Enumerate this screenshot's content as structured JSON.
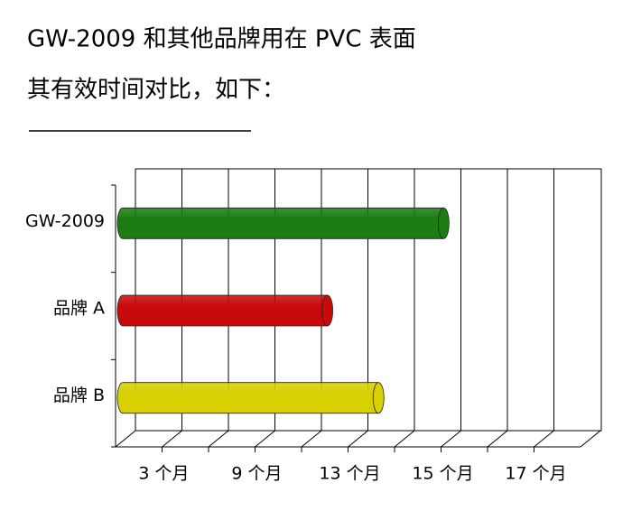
{
  "chart_data": {
    "type": "bar3d",
    "title": "GW-2009 和其他品牌用在 PVC 表面",
    "subtitle": "其有效时间对比，如下：",
    "categories": [
      "GW-2009",
      "品牌 A",
      "品牌 B"
    ],
    "values": [
      6.9,
      4.4,
      5.5
    ],
    "colors": [
      "#1b7d12",
      "#c80a0a",
      "#d8d000"
    ],
    "xlim": [
      0,
      10
    ],
    "xticks": [
      {
        "value": 1,
        "label": "3 个月"
      },
      {
        "value": 3,
        "label": "9 个月"
      },
      {
        "value": 5,
        "label": "13 个月"
      },
      {
        "value": 7,
        "label": "15 个月"
      },
      {
        "value": 9,
        "label": "17 个月"
      }
    ],
    "grid": true
  }
}
